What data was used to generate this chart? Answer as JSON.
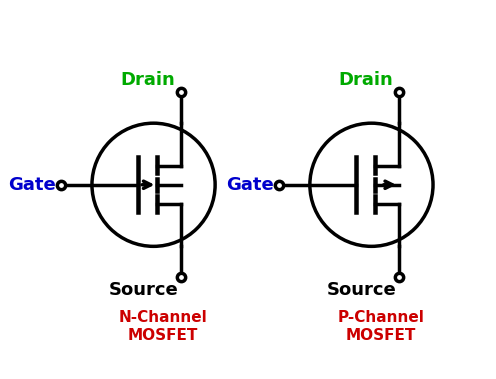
{
  "background_color": "#ffffff",
  "title_color": "#cc0000",
  "drain_color": "#00aa00",
  "gate_color": "#0000cc",
  "source_color": "#000000",
  "line_color": "#000000",
  "line_width": 2.5,
  "nchan_label": "N-Channel\nMOSFET",
  "pchan_label": "P-Channel\nMOSFET",
  "drain_label": "Drain",
  "gate_label": "Gate",
  "source_label": "Source"
}
